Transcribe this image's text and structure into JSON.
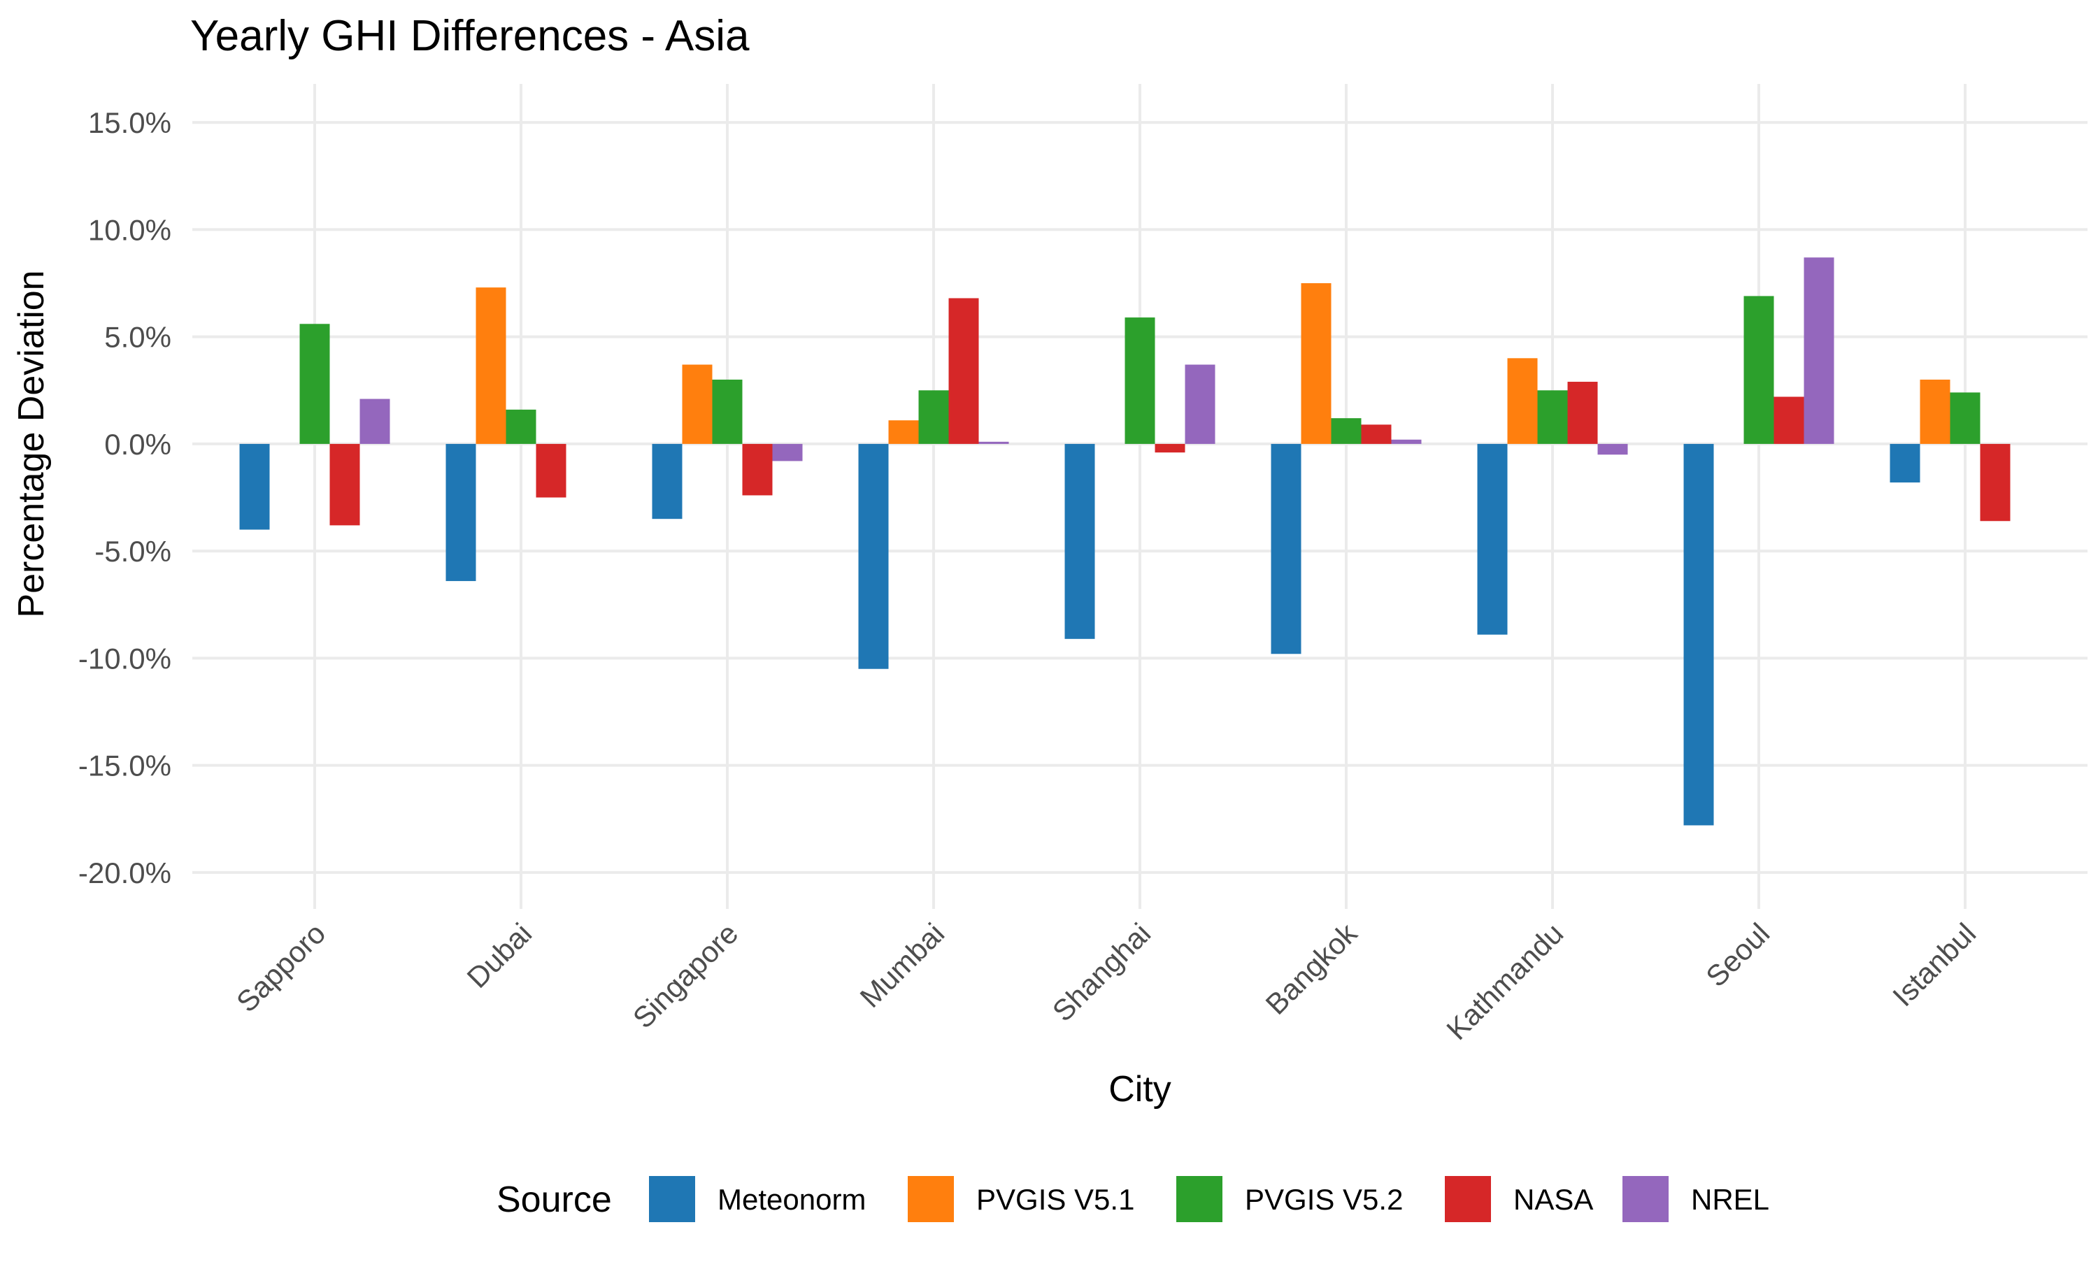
{
  "chart_data": {
    "type": "bar",
    "title": "Yearly GHI Differences - Asia",
    "xlabel": "City",
    "ylabel": "Percentage Deviation",
    "ylim": [
      -21.7,
      16.8
    ],
    "yticks": [
      15,
      10,
      5,
      0,
      -5,
      -10,
      -15,
      -20
    ],
    "ytick_labels": [
      "15.0%",
      "10.0%",
      "5.0%",
      "0.0%",
      "-5.0%",
      "-10.0%",
      "-15.0%",
      "-20.0%"
    ],
    "categories": [
      "Sapporo",
      "Dubai",
      "Singapore",
      "Mumbai",
      "Shanghai",
      "Bangkok",
      "Kathmandu",
      "Seoul",
      "Istanbul"
    ],
    "legend": {
      "title": "Source",
      "position": "bottom"
    },
    "series": [
      {
        "name": "Meteonorm",
        "color": "#1f77b4",
        "values": [
          -4.0,
          -6.4,
          -3.5,
          -10.5,
          -9.1,
          -9.8,
          -8.9,
          -17.8,
          -1.8
        ]
      },
      {
        "name": "PVGIS V5.1",
        "color": "#ff7f0e",
        "values": [
          null,
          7.3,
          3.7,
          1.1,
          null,
          7.5,
          4.0,
          null,
          3.0
        ]
      },
      {
        "name": "PVGIS V5.2",
        "color": "#2ca02c",
        "values": [
          5.6,
          1.6,
          3.0,
          2.5,
          5.9,
          1.2,
          2.5,
          6.9,
          2.4
        ]
      },
      {
        "name": "NASA",
        "color": "#d62728",
        "values": [
          -3.8,
          -2.5,
          -2.4,
          6.8,
          -0.4,
          0.9,
          2.9,
          2.2,
          -3.6
        ]
      },
      {
        "name": "NREL",
        "color": "#9467bd",
        "values": [
          2.1,
          null,
          -0.8,
          0.1,
          3.7,
          0.2,
          -0.5,
          8.7,
          null
        ]
      }
    ]
  }
}
